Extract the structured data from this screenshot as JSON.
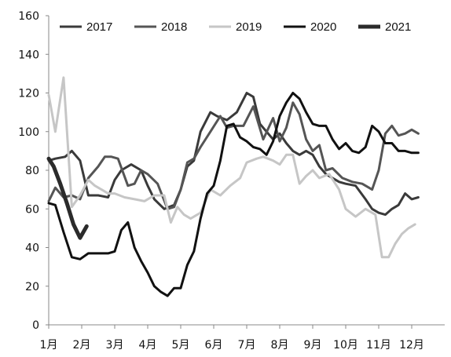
{
  "chart_data": {
    "type": "line",
    "title": "",
    "xlabel": "",
    "ylabel": "",
    "ylim": [
      0,
      160
    ],
    "yticks": [
      0,
      20,
      40,
      60,
      80,
      100,
      120,
      140,
      160
    ],
    "xlim": [
      0,
      12
    ],
    "xticks": [
      {
        "pos": 0,
        "label": "1月"
      },
      {
        "pos": 1,
        "label": "2月"
      },
      {
        "pos": 2,
        "label": "3月"
      },
      {
        "pos": 3,
        "label": "4月"
      },
      {
        "pos": 4,
        "label": "5月"
      },
      {
        "pos": 5,
        "label": "6月"
      },
      {
        "pos": 6,
        "label": "7月"
      },
      {
        "pos": 7,
        "label": "8月"
      },
      {
        "pos": 8,
        "label": "9月"
      },
      {
        "pos": 9,
        "label": "10月"
      },
      {
        "pos": 10,
        "label": "11月"
      },
      {
        "pos": 11,
        "label": "12月"
      }
    ],
    "grid": false,
    "legend": "top",
    "series": [
      {
        "name": "2017",
        "color": "#3a3a3a",
        "width": 3,
        "x": [
          0,
          0.2,
          0.5,
          0.7,
          0.95,
          1.2,
          1.5,
          1.8,
          2.0,
          2.2,
          2.5,
          2.8,
          3.0,
          3.2,
          3.5,
          3.8,
          4.0,
          4.2,
          4.4,
          4.6,
          4.9,
          5.1,
          5.4,
          5.7,
          6.0,
          6.2,
          6.4,
          6.6,
          6.8,
          7.0,
          7.2,
          7.4,
          7.6,
          7.8,
          8.0,
          8.2,
          8.4,
          8.6,
          8.8,
          9.0,
          9.3,
          9.6,
          9.8,
          10.0,
          10.2,
          10.4,
          10.6,
          10.8,
          11.0,
          11.2
        ],
        "y": [
          85,
          86,
          87,
          90,
          85,
          67,
          67,
          66,
          75,
          80,
          83,
          80,
          72,
          65,
          60,
          62,
          70,
          82,
          85,
          100,
          110,
          108,
          106,
          110,
          120,
          118,
          104,
          100,
          96,
          99,
          94,
          90,
          88,
          90,
          88,
          82,
          78,
          76,
          74,
          73,
          72,
          65,
          60,
          58,
          57,
          60,
          62,
          68,
          65,
          66
        ]
      },
      {
        "name": "2018",
        "color": "#555555",
        "width": 3,
        "x": [
          0,
          0.2,
          0.45,
          0.7,
          0.95,
          1.2,
          1.5,
          1.7,
          1.9,
          2.1,
          2.4,
          2.6,
          2.8,
          3.0,
          3.3,
          3.6,
          3.8,
          4.0,
          4.2,
          4.4,
          4.6,
          4.9,
          5.2,
          5.4,
          5.6,
          5.9,
          6.2,
          6.5,
          6.8,
          7.0,
          7.2,
          7.4,
          7.6,
          7.8,
          8.0,
          8.2,
          8.4,
          8.6,
          8.9,
          9.2,
          9.5,
          9.8,
          10.0,
          10.2,
          10.4,
          10.6,
          10.8,
          11.0,
          11.2
        ],
        "y": [
          64,
          71,
          66,
          67,
          65,
          76,
          82,
          87,
          87,
          86,
          72,
          73,
          80,
          78,
          73,
          60,
          61,
          70,
          84,
          86,
          92,
          100,
          108,
          102,
          103,
          103,
          113,
          96,
          107,
          95,
          102,
          115,
          109,
          96,
          90,
          93,
          80,
          81,
          76,
          74,
          73,
          70,
          80,
          99,
          103,
          98,
          99,
          101,
          99
        ]
      },
      {
        "name": "2019",
        "color": "#c6c6c6",
        "width": 3,
        "x": [
          0,
          0.2,
          0.45,
          0.7,
          0.95,
          1.2,
          1.4,
          1.6,
          1.8,
          2.0,
          2.3,
          2.6,
          2.9,
          3.2,
          3.5,
          3.7,
          3.9,
          4.1,
          4.3,
          4.6,
          4.9,
          5.2,
          5.5,
          5.8,
          6.0,
          6.3,
          6.5,
          6.8,
          7.0,
          7.2,
          7.4,
          7.6,
          7.8,
          8.0,
          8.2,
          8.5,
          8.8,
          9.0,
          9.3,
          9.6,
          9.9,
          10.1,
          10.3,
          10.5,
          10.7,
          10.9,
          11.1
        ],
        "y": [
          119,
          100,
          128,
          61,
          67,
          75,
          72,
          70,
          68,
          68,
          66,
          65,
          64,
          67,
          67,
          53,
          61,
          57,
          55,
          58,
          70,
          67,
          72,
          76,
          84,
          86,
          87,
          85,
          83,
          88,
          88,
          73,
          77,
          80,
          76,
          78,
          70,
          60,
          56,
          60,
          57,
          35,
          35,
          42,
          47,
          50,
          52
        ]
      },
      {
        "name": "2020",
        "color": "#111111",
        "width": 3,
        "x": [
          0,
          0.2,
          0.45,
          0.7,
          0.95,
          1.2,
          1.5,
          1.8,
          2.0,
          2.2,
          2.4,
          2.6,
          2.8,
          3.0,
          3.2,
          3.4,
          3.6,
          3.8,
          4.0,
          4.2,
          4.4,
          4.6,
          4.8,
          5.0,
          5.2,
          5.4,
          5.6,
          5.8,
          6.0,
          6.2,
          6.4,
          6.6,
          6.8,
          7.0,
          7.2,
          7.4,
          7.6,
          7.8,
          8.0,
          8.2,
          8.4,
          8.6,
          8.8,
          9.0,
          9.2,
          9.4,
          9.6,
          9.8,
          10.0,
          10.2,
          10.4,
          10.6,
          10.8,
          11.0,
          11.2
        ],
        "y": [
          63,
          62,
          48,
          35,
          34,
          37,
          37,
          37,
          38,
          49,
          53,
          40,
          33,
          27,
          20,
          17,
          15,
          19,
          19,
          31,
          38,
          55,
          68,
          72,
          85,
          103,
          104,
          97,
          95,
          92,
          91,
          88,
          95,
          108,
          115,
          120,
          117,
          110,
          104,
          103,
          103,
          96,
          91,
          94,
          90,
          89,
          92,
          103,
          100,
          94,
          94,
          90,
          90,
          89,
          89
        ]
      },
      {
        "name": "2021",
        "color": "#2b2b2b",
        "width": 5,
        "x": [
          0,
          0.15,
          0.35,
          0.55,
          0.75,
          0.95,
          1.15
        ],
        "y": [
          86,
          82,
          73,
          63,
          52,
          45,
          51
        ]
      }
    ]
  }
}
